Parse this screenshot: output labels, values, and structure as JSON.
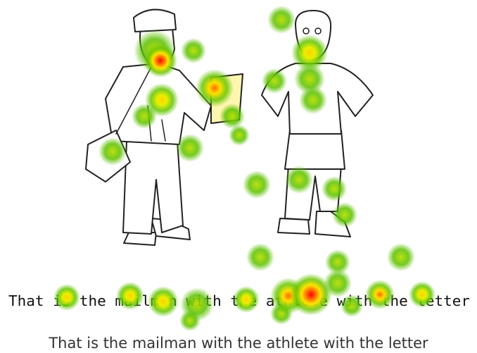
{
  "stimulus": {
    "sentence": "That is the mailman with the athlete with the letter"
  },
  "caption": "That is the mailman with the athlete with the letter"
}
